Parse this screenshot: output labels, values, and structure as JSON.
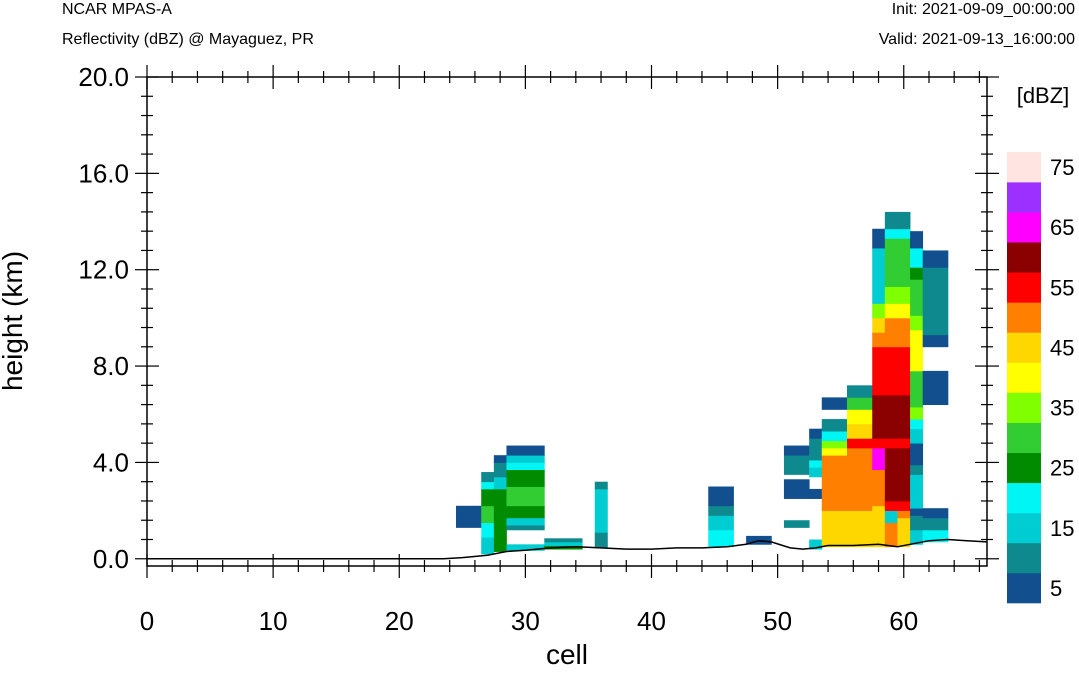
{
  "header": {
    "model": "NCAR MPAS-A",
    "subtitle": "Reflectivity (dBZ) @ Mayaguez, PR",
    "init": "Init: 2021-09-09_00:00:00",
    "valid": "Valid: 2021-09-13_16:00:00"
  },
  "chart_data": {
    "type": "heatmap",
    "xlabel": "cell",
    "ylabel": "height (km)",
    "xlim": [
      0,
      66.6
    ],
    "ylim": [
      -0.3,
      20.0
    ],
    "x_ticks": [
      "0",
      "10",
      "20",
      "30",
      "40",
      "50",
      "60"
    ],
    "y_ticks": [
      "0.0",
      "4.0",
      "8.0",
      "12.0",
      "16.0",
      "20.0"
    ],
    "legend": {
      "title": "[dBZ]",
      "placement": "right",
      "bins": [
        {
          "lo": 0,
          "hi": 5,
          "color": "#114f8f"
        },
        {
          "lo": 5,
          "hi": 10,
          "color": "#0e8a8f"
        },
        {
          "lo": 10,
          "hi": 15,
          "color": "#00cdd2"
        },
        {
          "lo": 15,
          "hi": 20,
          "color": "#00f5f5"
        },
        {
          "lo": 20,
          "hi": 25,
          "color": "#008b00"
        },
        {
          "lo": 25,
          "hi": 30,
          "color": "#32cd32"
        },
        {
          "lo": 30,
          "hi": 35,
          "color": "#7fff00"
        },
        {
          "lo": 35,
          "hi": 40,
          "color": "#ffff00"
        },
        {
          "lo": 40,
          "hi": 45,
          "color": "#ffd700"
        },
        {
          "lo": 45,
          "hi": 50,
          "color": "#ff7f00"
        },
        {
          "lo": 50,
          "hi": 55,
          "color": "#ff0000"
        },
        {
          "lo": 55,
          "hi": 60,
          "color": "#8b0000"
        },
        {
          "lo": 60,
          "hi": 65,
          "color": "#ff00ff"
        },
        {
          "lo": 65,
          "hi": 70,
          "color": "#9b30ff"
        },
        {
          "lo": 70,
          "hi": 75,
          "color": "#ffe4e1"
        }
      ],
      "labels": [
        "5",
        "15",
        "25",
        "35",
        "45",
        "55",
        "65",
        "75"
      ]
    },
    "terrain": [
      [
        0,
        0.0
      ],
      [
        23.5,
        0.0
      ],
      [
        25,
        0.05
      ],
      [
        27,
        0.15
      ],
      [
        28.5,
        0.3
      ],
      [
        30,
        0.35
      ],
      [
        32,
        0.45
      ],
      [
        34,
        0.5
      ],
      [
        36,
        0.45
      ],
      [
        38,
        0.4
      ],
      [
        40,
        0.4
      ],
      [
        42,
        0.45
      ],
      [
        44,
        0.45
      ],
      [
        46,
        0.5
      ],
      [
        47.5,
        0.6
      ],
      [
        48.5,
        0.75
      ],
      [
        49.5,
        0.7
      ],
      [
        51,
        0.45
      ],
      [
        52,
        0.4
      ],
      [
        53,
        0.45
      ],
      [
        54,
        0.55
      ],
      [
        56,
        0.55
      ],
      [
        58,
        0.6
      ],
      [
        59.5,
        0.5
      ],
      [
        60.5,
        0.6
      ],
      [
        62,
        0.75
      ],
      [
        63.5,
        0.8
      ],
      [
        65,
        0.75
      ],
      [
        66.6,
        0.7
      ]
    ],
    "columns": [
      {
        "x0": 24.5,
        "x1": 26.5,
        "cells": [
          [
            1.3,
            2.2,
            2
          ]
        ]
      },
      {
        "x0": 26.5,
        "x1": 27.5,
        "cells": [
          [
            0.2,
            0.9,
            12
          ],
          [
            0.9,
            1.5,
            17
          ],
          [
            1.5,
            2.2,
            27
          ],
          [
            2.2,
            2.9,
            22
          ],
          [
            2.9,
            3.2,
            17
          ],
          [
            3.2,
            3.6,
            7
          ]
        ]
      },
      {
        "x0": 27.5,
        "x1": 28.5,
        "cells": [
          [
            0.3,
            2.9,
            22
          ],
          [
            2.9,
            3.4,
            12
          ],
          [
            3.4,
            4.0,
            7
          ],
          [
            4.0,
            4.3,
            2
          ]
        ]
      },
      {
        "x0": 28.5,
        "x1": 31.5,
        "cells": [
          [
            0.35,
            0.6,
            12
          ],
          [
            1.2,
            1.4,
            7
          ],
          [
            1.4,
            1.7,
            12
          ],
          [
            1.7,
            2.2,
            22
          ],
          [
            2.2,
            3.0,
            27
          ],
          [
            3.0,
            3.7,
            22
          ],
          [
            3.7,
            4.0,
            17
          ],
          [
            4.0,
            4.3,
            12
          ],
          [
            4.3,
            4.7,
            2
          ]
        ]
      },
      {
        "x0": 31.5,
        "x1": 34.5,
        "cells": [
          [
            0.4,
            0.55,
            22
          ],
          [
            0.55,
            0.7,
            12
          ],
          [
            0.7,
            0.85,
            7
          ]
        ]
      },
      {
        "x0": 35.5,
        "x1": 36.5,
        "cells": [
          [
            0.45,
            1.1,
            7
          ],
          [
            1.1,
            2.9,
            12
          ],
          [
            2.9,
            3.2,
            7
          ]
        ]
      },
      {
        "x0": 44.5,
        "x1": 46.5,
        "cells": [
          [
            0.5,
            1.2,
            17
          ],
          [
            1.2,
            1.8,
            12
          ],
          [
            1.8,
            2.2,
            7
          ],
          [
            2.2,
            3.0,
            2
          ]
        ]
      },
      {
        "x0": 47.5,
        "x1": 49.5,
        "cells": [
          [
            0.6,
            0.95,
            2
          ]
        ]
      },
      {
        "x0": 50.5,
        "x1": 52.5,
        "cells": [
          [
            1.3,
            1.6,
            7
          ],
          [
            2.5,
            3.3,
            2
          ],
          [
            3.5,
            4.3,
            7
          ],
          [
            4.3,
            4.7,
            2
          ]
        ]
      },
      {
        "x0": 52.5,
        "x1": 53.5,
        "cells": [
          [
            0.4,
            0.8,
            12
          ],
          [
            2.5,
            2.9,
            2
          ],
          [
            3.4,
            3.8,
            12
          ],
          [
            3.8,
            4.1,
            17
          ],
          [
            4.1,
            5.0,
            7
          ],
          [
            5.0,
            5.4,
            2
          ]
        ]
      },
      {
        "x0": 53.5,
        "x1": 55.5,
        "cells": [
          [
            0.5,
            2.0,
            42
          ],
          [
            2.0,
            4.3,
            47
          ],
          [
            4.3,
            4.6,
            37
          ],
          [
            4.6,
            4.9,
            32
          ],
          [
            4.9,
            5.3,
            17
          ],
          [
            5.3,
            5.8,
            7
          ],
          [
            6.2,
            6.7,
            2
          ]
        ]
      },
      {
        "x0": 55.5,
        "x1": 57.5,
        "cells": [
          [
            0.5,
            2.0,
            42
          ],
          [
            2.0,
            4.6,
            47
          ],
          [
            4.6,
            5.0,
            52
          ],
          [
            5.0,
            5.6,
            42
          ],
          [
            5.6,
            6.2,
            37
          ],
          [
            6.2,
            6.7,
            27
          ],
          [
            6.7,
            7.2,
            7
          ]
        ]
      },
      {
        "x0": 57.5,
        "x1": 58.5,
        "cells": [
          [
            0.5,
            2.2,
            42
          ],
          [
            2.2,
            3.7,
            47
          ],
          [
            3.7,
            4.6,
            62
          ],
          [
            4.6,
            5.0,
            52
          ],
          [
            5.0,
            6.8,
            57
          ],
          [
            6.8,
            8.8,
            52
          ],
          [
            8.8,
            9.4,
            47
          ],
          [
            9.4,
            10.0,
            42
          ],
          [
            10.0,
            10.6,
            32
          ],
          [
            10.6,
            12.9,
            12
          ],
          [
            12.9,
            13.7,
            2
          ]
        ]
      },
      {
        "x0": 58.5,
        "x1": 59.5,
        "cells": [
          [
            0.5,
            1.5,
            47
          ],
          [
            1.5,
            2.0,
            12
          ],
          [
            2.0,
            2.4,
            52
          ],
          [
            2.4,
            4.6,
            57
          ],
          [
            4.6,
            5.0,
            52
          ],
          [
            5.0,
            6.8,
            57
          ],
          [
            6.8,
            8.8,
            52
          ],
          [
            8.8,
            10.0,
            47
          ],
          [
            10.0,
            10.6,
            37
          ],
          [
            10.6,
            11.3,
            32
          ],
          [
            11.3,
            13.3,
            27
          ],
          [
            13.3,
            13.7,
            17
          ],
          [
            13.7,
            14.4,
            7
          ]
        ]
      },
      {
        "x0": 59.5,
        "x1": 60.5,
        "cells": [
          [
            0.5,
            1.7,
            42
          ],
          [
            1.7,
            2.0,
            47
          ],
          [
            2.0,
            2.4,
            52
          ],
          [
            2.4,
            4.6,
            57
          ],
          [
            4.6,
            5.0,
            52
          ],
          [
            5.0,
            6.8,
            57
          ],
          [
            6.8,
            8.8,
            52
          ],
          [
            8.8,
            10.0,
            47
          ],
          [
            10.0,
            10.6,
            37
          ],
          [
            10.6,
            11.3,
            32
          ],
          [
            11.3,
            13.3,
            27
          ],
          [
            13.3,
            13.7,
            17
          ],
          [
            13.7,
            14.4,
            7
          ]
        ]
      },
      {
        "x0": 60.5,
        "x1": 61.5,
        "cells": [
          [
            0.6,
            1.2,
            12
          ],
          [
            1.2,
            1.8,
            7
          ],
          [
            1.8,
            2.1,
            2
          ],
          [
            2.1,
            3.5,
            12
          ],
          [
            3.5,
            3.9,
            7
          ],
          [
            3.9,
            4.8,
            2
          ],
          [
            4.8,
            5.4,
            12
          ],
          [
            5.4,
            5.8,
            17
          ],
          [
            5.8,
            6.3,
            32
          ],
          [
            6.3,
            7.8,
            27
          ],
          [
            7.8,
            9.5,
            37
          ],
          [
            9.5,
            10.1,
            32
          ],
          [
            10.1,
            11.6,
            27
          ],
          [
            11.6,
            12.1,
            22
          ],
          [
            12.1,
            12.9,
            17
          ],
          [
            12.9,
            13.6,
            2
          ]
        ]
      },
      {
        "x0": 61.5,
        "x1": 63.5,
        "cells": [
          [
            0.7,
            1.2,
            17
          ],
          [
            1.2,
            1.7,
            7
          ],
          [
            1.7,
            2.1,
            2
          ],
          [
            6.4,
            7.8,
            2
          ],
          [
            8.8,
            9.3,
            2
          ],
          [
            9.3,
            12.1,
            7
          ],
          [
            12.1,
            12.8,
            2
          ]
        ]
      }
    ]
  }
}
